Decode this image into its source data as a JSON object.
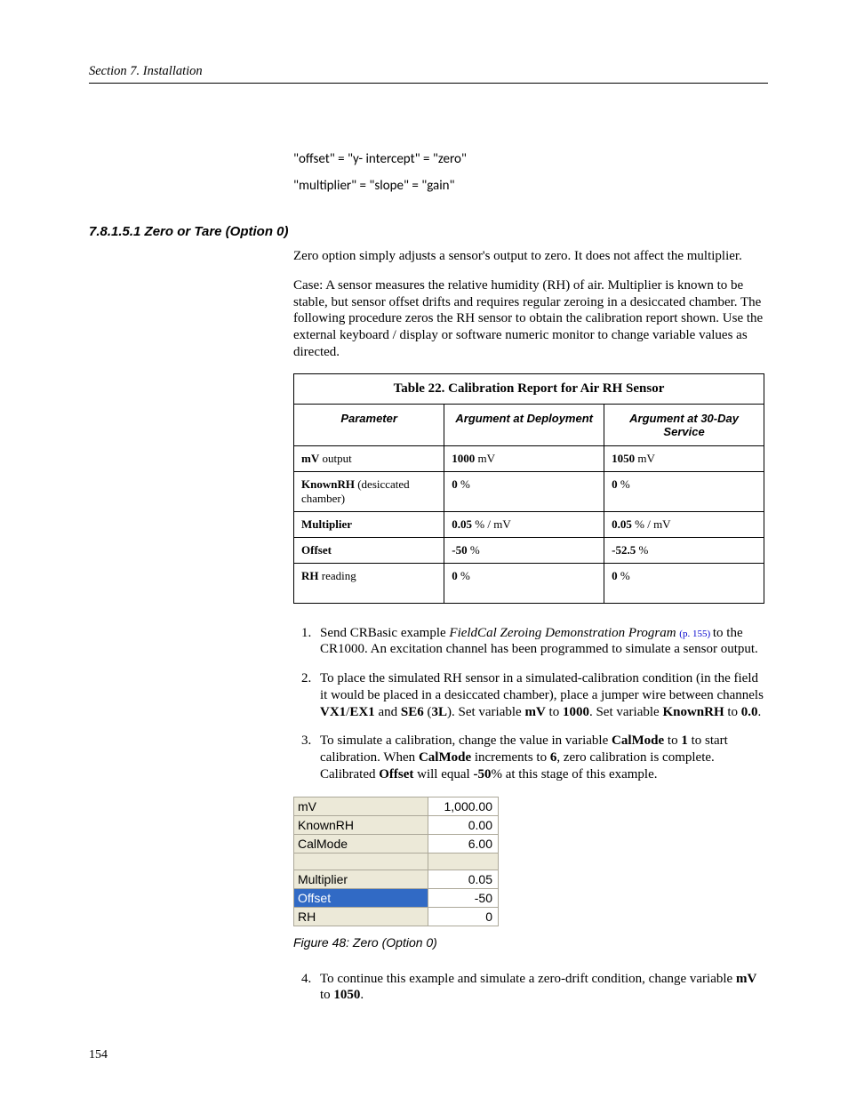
{
  "header": {
    "running": "Section 7.  Installation"
  },
  "equations": {
    "line1": "\"offset\" = \"y- intercept\" = \"zero\"",
    "line2": "\"multiplier\" = \"slope\" = \"gain\""
  },
  "heading": "7.8.1.5.1 Zero or Tare (Option 0)",
  "para1": "Zero option simply adjusts a sensor's output to zero.  It does not affect the multiplier.",
  "para2": "Case: A sensor measures the relative humidity (RH) of air.  Multiplier is known to be stable, but sensor offset drifts and requires regular zeroing in a desiccated chamber.  The following procedure zeros the RH sensor to obtain the calibration report shown. Use the external keyboard / display or software numeric monitor to change variable values as directed.",
  "table22": {
    "title": "Table 22. Calibration Report for Air RH Sensor",
    "columns": [
      "Parameter",
      "Argument at Deployment",
      "Argument at 30-Day Service"
    ],
    "rows": [
      {
        "p_b": "mV",
        "p_rest": " output",
        "d_b": "1000",
        "d_rest": " mV",
        "s_b": "1050",
        "s_rest": " mV"
      },
      {
        "p_b": "KnownRH",
        "p_rest": " (desiccated chamber)",
        "d_b": "0",
        "d_rest": " %",
        "s_b": "0",
        "s_rest": " %"
      },
      {
        "p_b": "Multiplier",
        "p_rest": "",
        "d_b": "0.05",
        "d_rest": " % / mV",
        "s_b": "0.05",
        "s_rest": " % / mV"
      },
      {
        "p_b": "Offset",
        "p_rest": "",
        "d_b": "-50",
        "d_rest": " %",
        "s_b": "-52.5",
        "s_rest": " %"
      },
      {
        "p_b": "RH",
        "p_rest": " reading",
        "d_b": "0",
        "d_rest": " %",
        "s_b": "0",
        "s_rest": " %",
        "tall": true
      }
    ]
  },
  "steps": {
    "s1_pre": "Send CRBasic example ",
    "s1_link_ital": "FieldCal Zeroing Demonstration Program ",
    "s1_link_page": "(p. 155) ",
    "s1_post": "to the CR1000.  An excitation channel has been programmed to simulate a sensor output.",
    "s2_a": "To place the simulated RH sensor in a simulated-calibration condition (in the field it would be placed in a desiccated chamber), place a jumper wire between channels ",
    "s2_b1": "VX1",
    "s2_slash": "/",
    "s2_b2": "EX1",
    "s2_and": " and ",
    "s2_b3": "SE6",
    "s2_paren_open": " (",
    "s2_b4": "3L",
    "s2_paren_close": "). Set variable ",
    "s2_b5": "mV",
    "s2_to1": " to ",
    "s2_b6": "1000",
    "s2_setvar": ". Set variable ",
    "s2_b7": "KnownRH",
    "s2_to2": " to ",
    "s2_b8": "0.0",
    "s2_end": ".",
    "s3_a": "To simulate a calibration, change the value in variable ",
    "s3_b1": "CalMode",
    "s3_to1": " to ",
    "s3_b2": "1",
    "s3_mid1": " to start calibration. When ",
    "s3_b3": "CalMode",
    "s3_mid2": " increments to ",
    "s3_b4": "6",
    "s3_mid3": ", zero calibration is complete. Calibrated ",
    "s3_b5": "Offset",
    "s3_mid4": " will equal ",
    "s3_b6": "-50",
    "s3_end": "% at this stage of this example.",
    "s4_a": "To continue this example and simulate a zero-drift condition, change variable ",
    "s4_b1": "mV",
    "s4_to": " to ",
    "s4_b2": "1050",
    "s4_end": "."
  },
  "mini": {
    "rows": [
      {
        "label": "mV",
        "value": "1,000.00"
      },
      {
        "label": "KnownRH",
        "value": "0.00"
      },
      {
        "label": "CalMode",
        "value": "6.00"
      }
    ],
    "rows2": [
      {
        "label": "Multiplier",
        "value": "0.05",
        "selected": false
      },
      {
        "label": "Offset",
        "value": "-50",
        "selected": true
      },
      {
        "label": "RH",
        "value": "0",
        "selected": false
      }
    ]
  },
  "figure_caption": "Figure 48: Zero (Option 0)",
  "page_number": "154",
  "colors": {
    "link": "#0000cc",
    "mini_bg": "#ece9d8",
    "mini_sel": "#316ac5"
  }
}
